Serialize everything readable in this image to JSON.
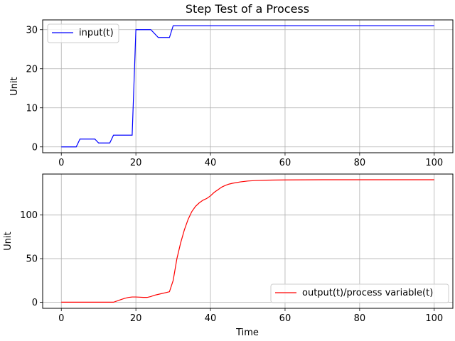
{
  "chart_data": [
    {
      "type": "line",
      "title": "Step Test of a Process",
      "xlabel": "",
      "ylabel": "Unit",
      "xlim": [
        -5,
        105
      ],
      "ylim": [
        -1.5,
        32.5
      ],
      "xticks": [
        0,
        20,
        40,
        60,
        80,
        100
      ],
      "yticks": [
        0,
        10,
        20,
        30
      ],
      "grid": true,
      "legend": "upper-left",
      "series": [
        {
          "name": "input(t)",
          "color": "#0000ff",
          "x": [
            0,
            4,
            5,
            9,
            10,
            13,
            14,
            19,
            20,
            24,
            26,
            29,
            30,
            100
          ],
          "y": [
            0,
            0,
            2,
            2,
            1,
            1,
            3,
            3,
            30,
            30,
            28,
            28,
            31,
            31
          ]
        }
      ]
    },
    {
      "type": "line",
      "title": "",
      "xlabel": "Time",
      "ylabel": "Unit",
      "xlim": [
        -5,
        105
      ],
      "ylim": [
        -7,
        147
      ],
      "xticks": [
        0,
        20,
        40,
        60,
        80,
        100
      ],
      "yticks": [
        0,
        50,
        100
      ],
      "grid": true,
      "legend": "lower-right",
      "series": [
        {
          "name": "output(t)/process variable(t)",
          "color": "#ff0000",
          "x": [
            0,
            14,
            15,
            16,
            17,
            18,
            19,
            20,
            21,
            22,
            23,
            24,
            25,
            26,
            27,
            28,
            29,
            30,
            31,
            32,
            33,
            34,
            35,
            36,
            37,
            38,
            39,
            40,
            41,
            42,
            43,
            44,
            45,
            46,
            48,
            50,
            52,
            55,
            60,
            70,
            80,
            100
          ],
          "y": [
            0,
            0,
            1.5,
            3,
            4.5,
            5.5,
            6,
            6,
            5.8,
            5.5,
            5.5,
            6.5,
            8,
            9,
            10,
            11,
            12,
            25,
            50,
            68,
            83,
            95,
            104,
            110,
            114,
            117,
            119,
            122,
            126,
            129,
            132,
            134,
            135.5,
            136.5,
            138,
            139,
            139.5,
            140,
            140.3,
            140.5,
            140.5,
            140.5
          ]
        }
      ]
    }
  ]
}
